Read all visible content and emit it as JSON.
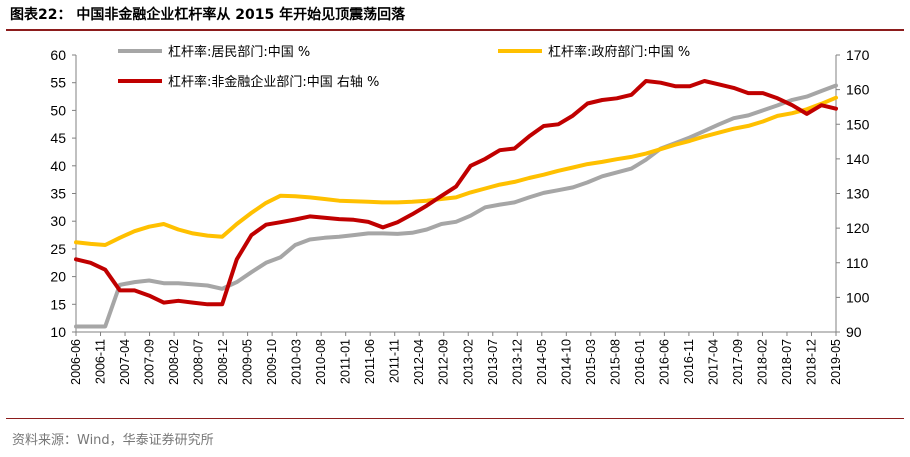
{
  "title": "图表22：  中国非金融企业杠杆率从 2015 年开始见顶震荡回落",
  "source": "资料来源：Wind，华泰证券研究所",
  "colors": {
    "resident": "#a6a6a6",
    "government": "#ffc000",
    "enterprise": "#c00000",
    "rule": "#8c1c1c"
  },
  "chart_data": {
    "type": "line",
    "categories": [
      "2006-06",
      "2006-09",
      "2006-12",
      "2007-03",
      "2007-06",
      "2007-09",
      "2007-12",
      "2008-03",
      "2008-06",
      "2008-09",
      "2008-12",
      "2009-03",
      "2009-06",
      "2009-09",
      "2009-12",
      "2010-03",
      "2010-06",
      "2010-09",
      "2010-12",
      "2011-03",
      "2011-06",
      "2011-09",
      "2011-12",
      "2012-03",
      "2012-06",
      "2012-09",
      "2012-12",
      "2013-03",
      "2013-06",
      "2013-09",
      "2013-12",
      "2014-03",
      "2014-06",
      "2014-09",
      "2014-12",
      "2015-03",
      "2015-06",
      "2015-09",
      "2015-12",
      "2016-03",
      "2016-06",
      "2016-09",
      "2016-12",
      "2017-03",
      "2017-06",
      "2017-09",
      "2017-12",
      "2018-03",
      "2018-06",
      "2018-09",
      "2018-12",
      "2019-03",
      "2019-06"
    ],
    "x_tick_labels": [
      "2006-06",
      "2006-11",
      "2007-04",
      "2007-09",
      "2008-02",
      "2008-07",
      "2008-12",
      "2009-05",
      "2009-10",
      "2010-03",
      "2010-08",
      "2011-01",
      "2011-06",
      "2011-11",
      "2012-04",
      "2012-09",
      "2013-02",
      "2013-07",
      "2013-12",
      "2014-05",
      "2014-10",
      "2015-03",
      "2015-08",
      "2016-01",
      "2016-06",
      "2016-11",
      "2017-04",
      "2017-09",
      "2018-02",
      "2018-07",
      "2018-12",
      "2019-05"
    ],
    "series": [
      {
        "name": "杠杆率:居民部门:中国 %",
        "axis": "left",
        "values": [
          11,
          11,
          11,
          18.5,
          19,
          19.3,
          18.8,
          18.8,
          18.6,
          18.4,
          17.8,
          19,
          20.8,
          22.5,
          23.5,
          25.7,
          26.7,
          27,
          27.2,
          27.5,
          27.8,
          27.8,
          27.7,
          27.9,
          28.5,
          29.5,
          29.9,
          31,
          32.5,
          33,
          33.4,
          34.3,
          35.1,
          35.6,
          36.1,
          37,
          38.1,
          38.8,
          39.5,
          41.1,
          43.1,
          44.1,
          45.1,
          46.3,
          47.5,
          48.6,
          49.1,
          50,
          50.9,
          51.9,
          52.5,
          53.5,
          54.5
        ]
      },
      {
        "name": "杠杆率:政府部门:中国 %",
        "axis": "left",
        "values": [
          26.2,
          25.9,
          25.7,
          27,
          28.2,
          29,
          29.5,
          28.5,
          27.8,
          27.4,
          27.2,
          29.5,
          31.5,
          33.3,
          34.6,
          34.5,
          34.3,
          34,
          33.7,
          33.6,
          33.5,
          33.4,
          33.4,
          33.5,
          33.7,
          34,
          34.3,
          35.2,
          35.9,
          36.6,
          37.1,
          37.8,
          38.4,
          39.1,
          39.7,
          40.3,
          40.7,
          41.2,
          41.6,
          42.2,
          43,
          43.8,
          44.5,
          45.3,
          46,
          46.7,
          47.2,
          48,
          49,
          49.5,
          50.2,
          51.2,
          52.3
        ]
      },
      {
        "name": "杠杆率:非金融企业部门:中国 右轴 %",
        "axis": "right",
        "values": [
          111,
          110,
          108,
          102,
          102,
          100.5,
          98.5,
          99,
          98.5,
          98,
          98,
          111,
          118,
          121,
          121.7,
          122.5,
          123.4,
          123,
          122.6,
          122.4,
          121.8,
          120.2,
          121.7,
          124,
          126.5,
          129.3,
          132,
          138,
          140,
          142.5,
          143,
          146.5,
          149.5,
          150,
          152.5,
          156,
          157,
          157.5,
          158.5,
          162.5,
          162,
          161,
          161,
          162.5,
          161.5,
          160.5,
          159,
          159,
          157.5,
          155.5,
          153,
          155.5,
          154.5
        ]
      }
    ],
    "y_left": {
      "ylim": [
        10,
        60
      ],
      "ticks": [
        10,
        15,
        20,
        25,
        30,
        35,
        40,
        45,
        50,
        55,
        60
      ]
    },
    "y_right": {
      "ylim": [
        90,
        170
      ],
      "ticks": [
        90,
        100,
        110,
        120,
        130,
        140,
        150,
        160,
        170
      ]
    },
    "grid": false,
    "legend": "top"
  }
}
